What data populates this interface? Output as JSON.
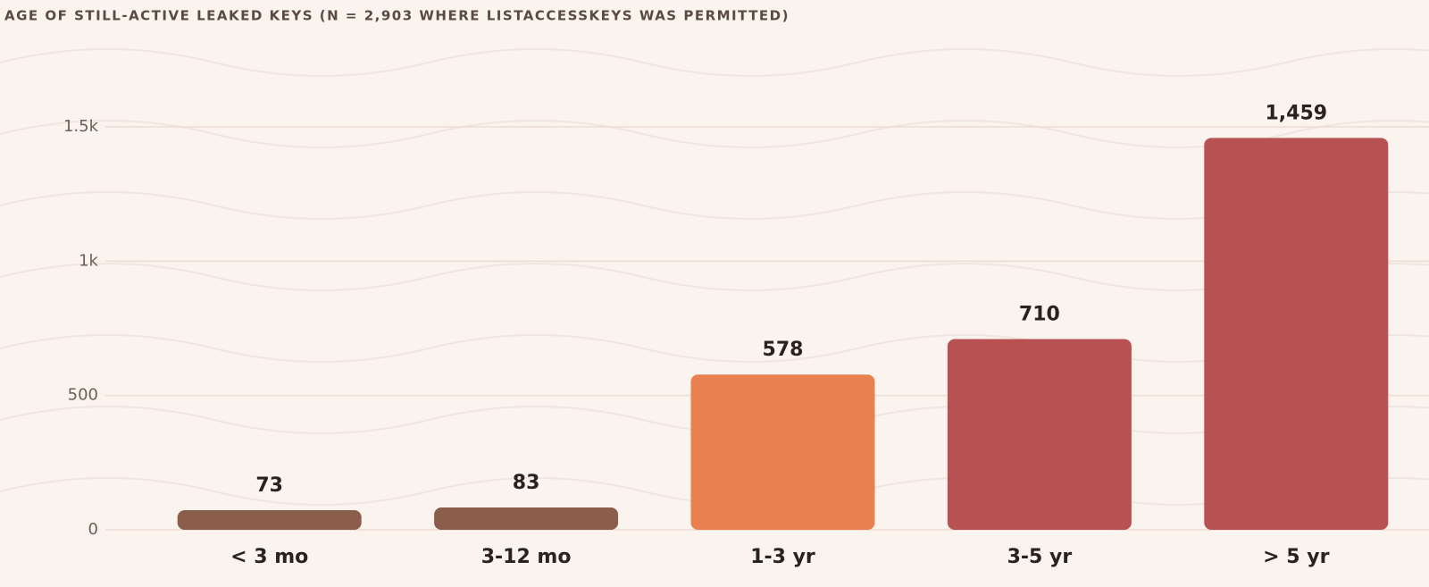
{
  "chart_data": {
    "type": "bar",
    "title": "AGE OF STILL-ACTIVE LEAKED KEYS (N = 2,903 WHERE LISTACCESSKEYS WAS PERMITTED)",
    "categories": [
      "< 3 mo",
      "3-12 mo",
      "1-3 yr",
      "3-5 yr",
      "> 5 yr"
    ],
    "values": [
      73,
      83,
      578,
      710,
      1459
    ],
    "value_labels": [
      "73",
      "83",
      "578",
      "710",
      "1,459"
    ],
    "colors": [
      "#8b5e4b",
      "#8b5e4b",
      "#e8804f",
      "#b85252",
      "#b85252"
    ],
    "ylim": [
      0,
      1500
    ],
    "yticks": [
      0,
      500,
      {
        "value": 1000,
        "label": "1k"
      },
      {
        "value": 1500,
        "label": "1.5k"
      }
    ],
    "grid": true
  }
}
